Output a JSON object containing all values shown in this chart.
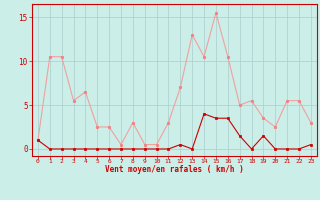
{
  "x": [
    0,
    1,
    2,
    3,
    4,
    5,
    6,
    7,
    8,
    9,
    10,
    11,
    12,
    13,
    14,
    15,
    16,
    17,
    18,
    19,
    20,
    21,
    22,
    23
  ],
  "rafales": [
    1.0,
    10.5,
    10.5,
    5.5,
    6.5,
    2.5,
    2.5,
    0.5,
    3.0,
    0.5,
    0.5,
    3.0,
    7.0,
    13.0,
    10.5,
    15.5,
    10.5,
    5.0,
    5.5,
    3.5,
    2.5,
    5.5,
    5.5,
    3.0
  ],
  "moyen": [
    1.0,
    0.0,
    0.0,
    0.0,
    0.0,
    0.0,
    0.0,
    0.0,
    0.0,
    0.0,
    0.0,
    0.0,
    0.5,
    0.0,
    4.0,
    3.5,
    3.5,
    1.5,
    0.0,
    1.5,
    0.0,
    0.0,
    0.0,
    0.5
  ],
  "line_color_rafales": "#f0a0a0",
  "line_color_moyen": "#cc0000",
  "marker_color_rafales": "#f08080",
  "marker_color_moyen": "#cc0000",
  "bg_color": "#cceee8",
  "grid_color": "#aacccc",
  "axis_color": "#cc0000",
  "xlabel": "Vent moyen/en rafales ( km/h )",
  "yticks": [
    0,
    5,
    10,
    15
  ],
  "xticks": [
    0,
    1,
    2,
    3,
    4,
    5,
    6,
    7,
    8,
    9,
    10,
    11,
    12,
    13,
    14,
    15,
    16,
    17,
    18,
    19,
    20,
    21,
    22,
    23
  ],
  "ylim": [
    -0.8,
    16.5
  ],
  "xlim": [
    -0.5,
    23.5
  ]
}
